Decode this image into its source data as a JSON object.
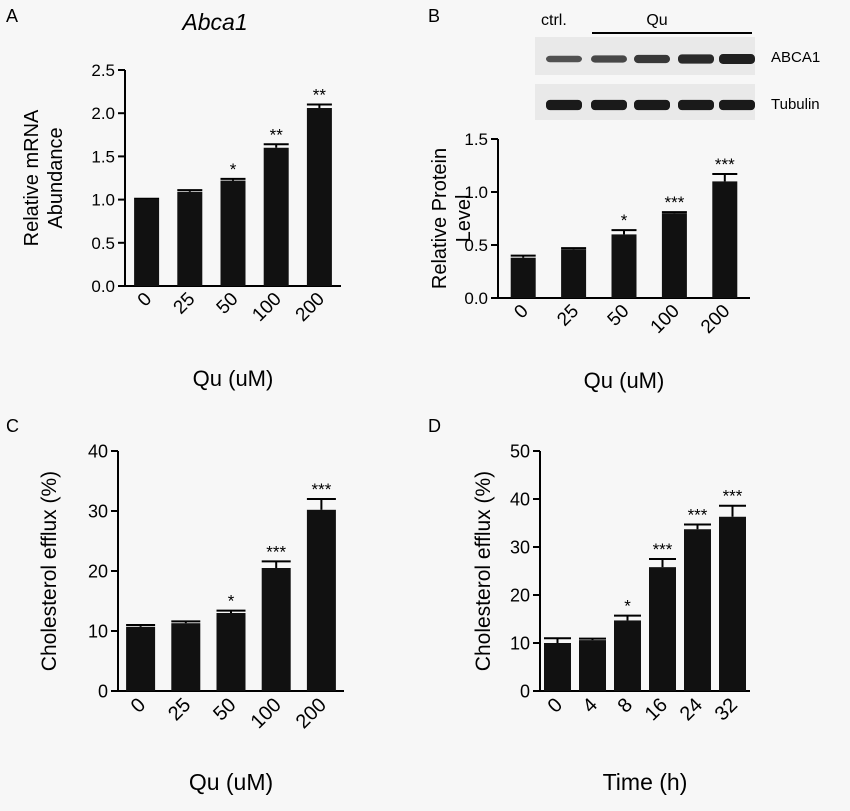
{
  "panels": {
    "A": {
      "letter": "A"
    },
    "B": {
      "letter": "B"
    },
    "C": {
      "letter": "C"
    },
    "D": {
      "letter": "D"
    }
  },
  "blot": {
    "ctrl_label": "ctrl.",
    "treatment_label": "Qu",
    "rows": [
      {
        "label": "ABCA1",
        "intensity": [
          0.35,
          0.45,
          0.6,
          0.75,
          0.85
        ]
      },
      {
        "label": "Tubulin",
        "intensity": [
          0.9,
          0.9,
          0.9,
          0.9,
          0.9
        ]
      }
    ],
    "colors": {
      "band": "#111111",
      "background": "#e9e9e9"
    }
  },
  "chart_data": [
    {
      "panel": "A",
      "type": "bar",
      "title": "Abca1",
      "title_style": "italic",
      "xlabel": "Qu (uM)",
      "ylabel_lines": [
        "Relative mRNA",
        "Abundance"
      ],
      "categories": [
        "0",
        "25",
        "50",
        "100",
        "200"
      ],
      "values": [
        1.0,
        1.09,
        1.22,
        1.6,
        2.06
      ],
      "errors": [
        0.01,
        0.02,
        0.02,
        0.04,
        0.04
      ],
      "significance": [
        "",
        "",
        "*",
        "**",
        "**"
      ],
      "ylim": [
        0,
        2.5
      ],
      "yticks": [
        "0.0",
        "0.5",
        "1.0",
        "1.5",
        "2.0",
        "2.5"
      ],
      "bar_color": "#111111",
      "grid": false
    },
    {
      "panel": "B",
      "type": "bar",
      "title": "",
      "xlabel": "Qu (uM)",
      "ylabel_lines": [
        "Relative Protein",
        "Level"
      ],
      "categories": [
        "0",
        "25",
        "50",
        "100",
        "200"
      ],
      "values": [
        0.38,
        0.46,
        0.6,
        0.8,
        1.1
      ],
      "errors": [
        0.02,
        0.01,
        0.04,
        0.01,
        0.07
      ],
      "significance": [
        "",
        "",
        "*",
        "***",
        "***"
      ],
      "ylim": [
        0,
        1.5
      ],
      "yticks": [
        "0.0",
        "0.5",
        "1.0",
        "1.5"
      ],
      "bar_color": "#111111",
      "grid": false
    },
    {
      "panel": "C",
      "type": "bar",
      "title": "",
      "xlabel": "Qu (uM)",
      "ylabel_lines": [
        "Cholesterol efflux (%)"
      ],
      "categories": [
        "0",
        "25",
        "50",
        "100",
        "200"
      ],
      "values": [
        10.7,
        11.3,
        13.0,
        20.5,
        30.2
      ],
      "errors": [
        0.3,
        0.3,
        0.4,
        1.1,
        1.8
      ],
      "significance": [
        "",
        "",
        "*",
        "***",
        "***"
      ],
      "ylim": [
        0,
        40
      ],
      "yticks": [
        "0",
        "10",
        "20",
        "30",
        "40"
      ],
      "bar_color": "#111111",
      "grid": false
    },
    {
      "panel": "D",
      "type": "bar",
      "title": "",
      "xlabel": "Time (h)",
      "ylabel_lines": [
        "Cholesterol efflux (%)"
      ],
      "categories": [
        "0",
        "4",
        "8",
        "16",
        "24",
        "32"
      ],
      "values": [
        10.0,
        10.6,
        14.7,
        25.8,
        33.7,
        36.3
      ],
      "errors": [
        1.0,
        0.3,
        1.0,
        1.7,
        1.0,
        2.3
      ],
      "significance": [
        "",
        "",
        "*",
        "***",
        "***",
        "***"
      ],
      "ylim": [
        0,
        50
      ],
      "yticks": [
        "0",
        "10",
        "20",
        "30",
        "40",
        "50"
      ],
      "bar_color": "#111111",
      "grid": false
    }
  ]
}
